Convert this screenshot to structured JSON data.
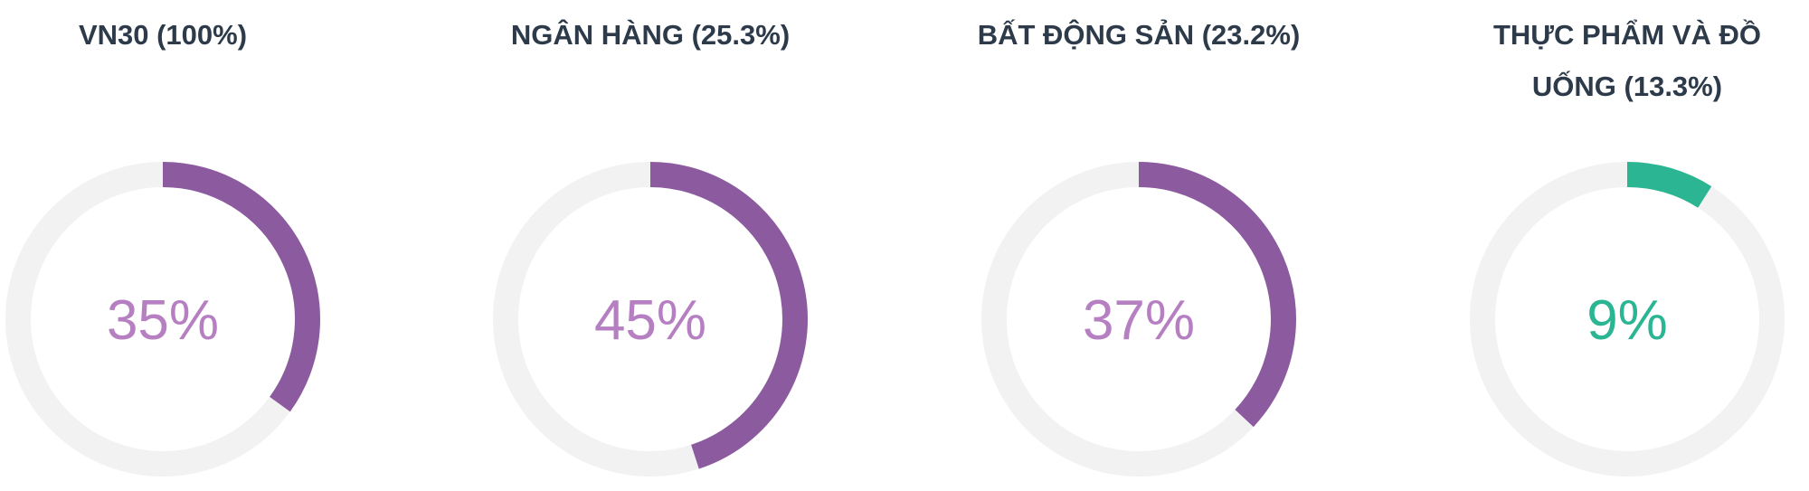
{
  "chart_data": [
    {
      "type": "donut",
      "title": "VN30 (100%)",
      "values": [
        35
      ],
      "value_labels": [
        "35%"
      ],
      "color": "#8b5a9f",
      "label_color": "#b57fc2"
    },
    {
      "type": "donut",
      "title": "NGÂN HÀNG (25.3%)",
      "values": [
        45
      ],
      "value_labels": [
        "45%"
      ],
      "color": "#8b5a9f",
      "label_color": "#b57fc2"
    },
    {
      "type": "donut",
      "title": "BẤT ĐỘNG SẢN (23.2%)",
      "values": [
        37
      ],
      "value_labels": [
        "37%"
      ],
      "color": "#8b5a9f",
      "label_color": "#b57fc2"
    },
    {
      "type": "donut",
      "title": "THỰC PHẨM VÀ ĐỒ UỐNG (13.3%)",
      "values": [
        9
      ],
      "value_labels": [
        "9%"
      ],
      "color": "#2bb592",
      "label_color": "#2bb592"
    }
  ]
}
